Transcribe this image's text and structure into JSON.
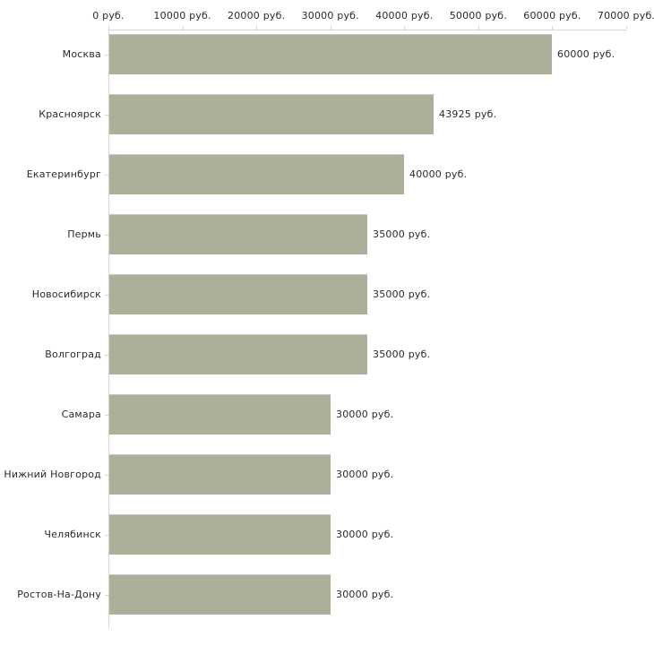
{
  "chart_data": {
    "type": "bar",
    "orientation": "horizontal",
    "title": "",
    "xlabel": "",
    "ylabel": "",
    "grid": false,
    "legend": false,
    "categories": [
      "Москва",
      "Красноярск",
      "Екатеринбург",
      "Пермь",
      "Новосибирск",
      "Волгоград",
      "Самара",
      "Нижний Новгород",
      "Челябинск",
      "Ростов-На-Дону"
    ],
    "values": [
      60000,
      43925,
      40000,
      35000,
      35000,
      35000,
      30000,
      30000,
      30000,
      30000
    ],
    "value_labels": [
      "60000 руб.",
      "43925 руб.",
      "40000 руб.",
      "35000 руб.",
      "35000 руб.",
      "35000 руб.",
      "30000 руб.",
      "30000 руб.",
      "30000 руб.",
      "30000 руб."
    ],
    "x_axis": {
      "position": "top",
      "min": 0,
      "max": 70000,
      "tick_step": 10000,
      "tick_labels": [
        "0 руб.",
        "10000 руб.",
        "20000 руб.",
        "30000 руб.",
        "40000 руб.",
        "50000 руб.",
        "60000 руб.",
        "70000 руб."
      ]
    },
    "colors": {
      "bar_fill": "#aab099",
      "axis_line": "#d7d7c3",
      "text": "#2a2a2a",
      "background": "#ffffff"
    }
  }
}
